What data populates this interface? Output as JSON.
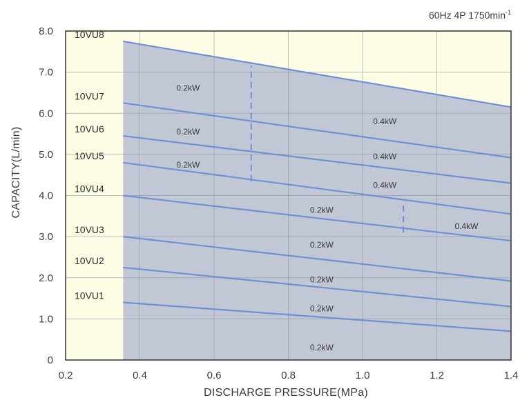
{
  "chart_data": {
    "type": "line",
    "title": "",
    "condition": "60Hz 4P 1750min",
    "condition_superscript": "-1",
    "xlabel": "DISCHARGE PRESSURE(MPa)",
    "ylabel": "CAPACITY(L/min)",
    "xlim": [
      0.2,
      1.4
    ],
    "ylim": [
      0,
      8.0
    ],
    "xticks": [
      {
        "value": 0.2,
        "label": "0.2"
      },
      {
        "value": 0.4,
        "label": "0.4"
      },
      {
        "value": 0.6,
        "label": "0.6"
      },
      {
        "value": 0.8,
        "label": "0.8"
      },
      {
        "value": 1.0,
        "label": "1.0"
      },
      {
        "value": 1.2,
        "label": "1.2"
      },
      {
        "value": 1.4,
        "label": "1.4"
      }
    ],
    "yticks": [
      {
        "value": 0,
        "label": "0"
      },
      {
        "value": 1.0,
        "label": "1.0"
      },
      {
        "value": 2.0,
        "label": "2.0"
      },
      {
        "value": 3.0,
        "label": "3.0"
      },
      {
        "value": 4.0,
        "label": "4.0"
      },
      {
        "value": 5.0,
        "label": "5.0"
      },
      {
        "value": 6.0,
        "label": "6.0"
      },
      {
        "value": 7.0,
        "label": "7.0"
      },
      {
        "value": 8.0,
        "label": "8.0"
      }
    ],
    "grid": true,
    "shaded_region_x_start": 0.355,
    "colors": {
      "background": "#fdfde6",
      "shade": "#c1c7d5",
      "line": "#6f8fd6",
      "grid": "#8e96a6",
      "frame": "#3c3c3c"
    },
    "series": [
      {
        "name": "10VU8",
        "x": [
          0.355,
          1.4
        ],
        "y": [
          7.75,
          6.15
        ]
      },
      {
        "name": "10VU7",
        "x": [
          0.355,
          1.4
        ],
        "y": [
          6.25,
          4.92
        ]
      },
      {
        "name": "10VU6",
        "x": [
          0.355,
          1.4
        ],
        "y": [
          5.45,
          4.3
        ]
      },
      {
        "name": "10VU5",
        "x": [
          0.355,
          1.4
        ],
        "y": [
          4.8,
          3.55
        ]
      },
      {
        "name": "10VU4",
        "x": [
          0.355,
          1.4
        ],
        "y": [
          4.0,
          2.9
        ]
      },
      {
        "name": "10VU3",
        "x": [
          0.355,
          1.4
        ],
        "y": [
          3.0,
          1.92
        ]
      },
      {
        "name": "10VU2",
        "x": [
          0.355,
          1.4
        ],
        "y": [
          2.25,
          1.3
        ]
      },
      {
        "name": "10VU1",
        "x": [
          0.355,
          1.4
        ],
        "y": [
          1.4,
          0.7
        ]
      }
    ],
    "dividers": [
      {
        "x": 0.7,
        "y_from": 4.35,
        "y_to": 7.15
      },
      {
        "x": 1.11,
        "y_from": 3.1,
        "y_to": 3.8
      }
    ],
    "annotations": [
      {
        "text": "0.2kW",
        "x": 0.53,
        "y": 6.62
      },
      {
        "text": "0.2kW",
        "x": 0.53,
        "y": 5.55
      },
      {
        "text": "0.2kW",
        "x": 0.53,
        "y": 4.75
      },
      {
        "text": "0.4kW",
        "x": 1.06,
        "y": 5.8
      },
      {
        "text": "0.4kW",
        "x": 1.06,
        "y": 4.95
      },
      {
        "text": "0.4kW",
        "x": 1.06,
        "y": 4.25
      },
      {
        "text": "0.2kW",
        "x": 0.89,
        "y": 3.65
      },
      {
        "text": "0.4kW",
        "x": 1.28,
        "y": 3.25
      },
      {
        "text": "0.2kW",
        "x": 0.89,
        "y": 2.8
      },
      {
        "text": "0.2kW",
        "x": 0.89,
        "y": 1.95
      },
      {
        "text": "0.2kW",
        "x": 0.89,
        "y": 1.25
      },
      {
        "text": "0.2kW",
        "x": 0.89,
        "y": 0.3
      }
    ]
  }
}
